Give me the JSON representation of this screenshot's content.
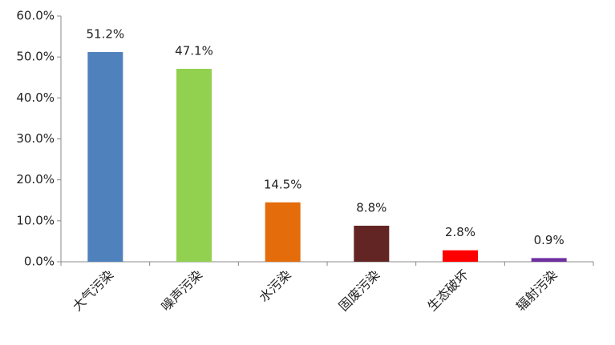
{
  "chart_data": {
    "type": "bar",
    "categories": [
      "大气污染",
      "噪声污染",
      "水污染",
      "固废污染",
      "生态破坏",
      "辐射污染"
    ],
    "values": [
      51.2,
      47.1,
      14.5,
      8.8,
      2.8,
      0.9
    ],
    "value_labels": [
      "51.2%",
      "47.1%",
      "14.5%",
      "8.8%",
      "2.8%",
      "0.9%"
    ],
    "colors": [
      "#4f81bd",
      "#92d050",
      "#e46c0a",
      "#632523",
      "#ff0000",
      "#7030a0"
    ],
    "ylim": [
      0,
      60
    ],
    "yticks": [
      {
        "value": 0,
        "label": "0.0%"
      },
      {
        "value": 10,
        "label": "10.0%"
      },
      {
        "value": 20,
        "label": "20.0%"
      },
      {
        "value": 30,
        "label": "30.0%"
      },
      {
        "value": 40,
        "label": "40.0%"
      },
      {
        "value": 50,
        "label": "50.0%"
      },
      {
        "value": 60,
        "label": "60.0%"
      }
    ]
  }
}
